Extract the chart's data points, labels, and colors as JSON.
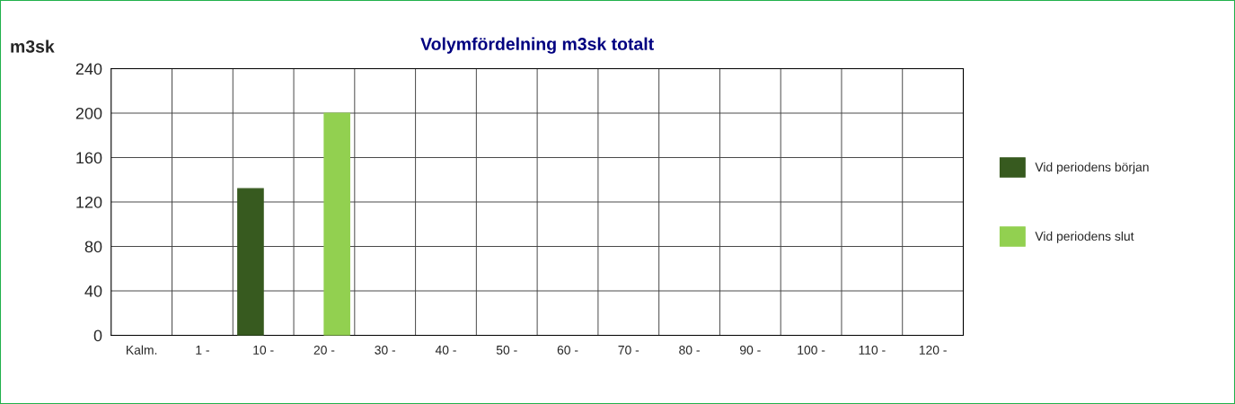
{
  "chart_data": {
    "type": "bar",
    "title": "Volymfördelning m3sk totalt",
    "ylabel": "m3sk",
    "categories": [
      "Kalm.",
      "1 -",
      "10 -",
      "20 -",
      "30 -",
      "40 -",
      "50 -",
      "60 -",
      "70 -",
      "80 -",
      "90 -",
      "100 -",
      "110 -",
      "120 -"
    ],
    "series": [
      {
        "name": "Vid periodens början",
        "color": "#375a1f",
        "values": [
          null,
          null,
          132,
          null,
          null,
          null,
          null,
          null,
          null,
          null,
          null,
          null,
          null,
          null
        ]
      },
      {
        "name": "Vid periodens slut",
        "color": "#92d050",
        "values": [
          null,
          null,
          null,
          200,
          null,
          null,
          null,
          null,
          null,
          null,
          null,
          null,
          null,
          null
        ]
      }
    ],
    "ylim": [
      0,
      240
    ],
    "yticks": [
      0,
      40,
      80,
      120,
      160,
      200,
      240
    ],
    "grid": true,
    "legend": "right"
  }
}
